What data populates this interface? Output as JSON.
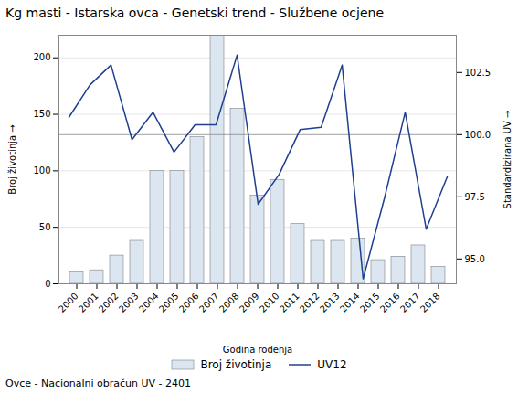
{
  "chart_data": {
    "type": "bar",
    "title": "Kg masti - Istarska ovca - Genetski trend - Službene ocjene",
    "xlabel": "Godina rođenja",
    "ylabel": "Broj životinja",
    "y2label": "Standardizirana UV",
    "footnote": "Ovce - Nacionalni obračun UV - 2401",
    "categories": [
      "2000",
      "2001",
      "2002",
      "2003",
      "2004",
      "2005",
      "2006",
      "2007",
      "2008",
      "2009",
      "2010",
      "2011",
      "2012",
      "2013",
      "2014",
      "2015",
      "2016",
      "2017",
      "2018"
    ],
    "series": [
      {
        "name": "Broj životinja",
        "type": "bar",
        "color": "#dce6f1",
        "values": [
          10,
          12,
          25,
          38,
          100,
          100,
          130,
          220,
          155,
          78,
          92,
          53,
          38,
          38,
          40,
          21,
          24,
          34,
          15
        ]
      },
      {
        "name": "UV12",
        "type": "line",
        "axis": "y2",
        "color": "#1f3f8f",
        "values": [
          100.7,
          102.0,
          102.8,
          99.8,
          100.9,
          99.3,
          100.4,
          100.4,
          103.2,
          97.2,
          98.4,
          100.2,
          100.3,
          102.8,
          94.2,
          97.4,
          100.9,
          96.2,
          98.3
        ]
      }
    ],
    "ylim": [
      0,
      220
    ],
    "yticks": [
      0,
      50,
      100,
      150,
      200
    ],
    "y2lim": [
      94.0,
      104.0
    ],
    "y2ticks": [
      {
        "value": 95.0,
        "label": "95.0"
      },
      97.5,
      {
        "value": 100.0,
        "label": "100.0"
      },
      102.5
    ],
    "reference_line_y2": 100.0,
    "grid": true,
    "legend": "bottom"
  }
}
